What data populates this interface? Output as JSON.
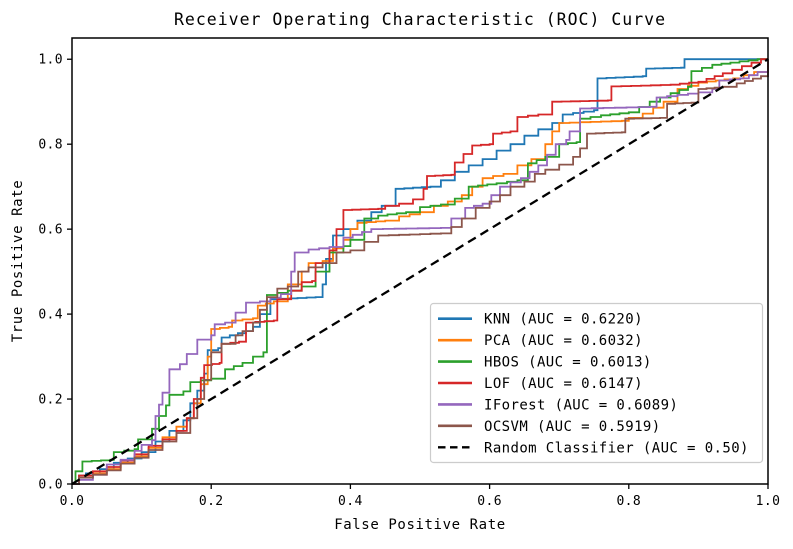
{
  "chart_data": {
    "type": "line",
    "subtype": "roc-step-curves",
    "title": "Receiver Operating Characteristic (ROC) Curve",
    "xlabel": "False Positive Rate",
    "ylabel": "True Positive Rate",
    "xlim": [
      0.0,
      1.0
    ],
    "ylim": [
      0.0,
      1.05
    ],
    "x_ticks": [
      "0.0",
      "0.2",
      "0.4",
      "0.6",
      "0.8",
      "1.0"
    ],
    "y_ticks": [
      "0.0",
      "0.2",
      "0.4",
      "0.6",
      "0.8",
      "1.0"
    ],
    "grid": false,
    "legend_position": "lower right",
    "series": [
      {
        "name": "KNN",
        "auc": 0.622,
        "label": "KNN (AUC = 0.6220)",
        "color": "#1f77b4",
        "style": "solid",
        "points": [
          [
            0,
            0
          ],
          [
            0.01,
            0.02
          ],
          [
            0.02,
            0.025
          ],
          [
            0.04,
            0.035
          ],
          [
            0.06,
            0.05
          ],
          [
            0.08,
            0.06
          ],
          [
            0.1,
            0.075
          ],
          [
            0.12,
            0.1
          ],
          [
            0.14,
            0.125
          ],
          [
            0.16,
            0.15
          ],
          [
            0.17,
            0.19
          ],
          [
            0.18,
            0.22
          ],
          [
            0.19,
            0.26
          ],
          [
            0.195,
            0.315
          ],
          [
            0.21,
            0.32
          ],
          [
            0.215,
            0.345
          ],
          [
            0.25,
            0.36
          ],
          [
            0.26,
            0.37
          ],
          [
            0.27,
            0.4
          ],
          [
            0.285,
            0.435
          ],
          [
            0.35,
            0.44
          ],
          [
            0.36,
            0.47
          ],
          [
            0.365,
            0.53
          ],
          [
            0.375,
            0.585
          ],
          [
            0.39,
            0.6
          ],
          [
            0.41,
            0.62
          ],
          [
            0.43,
            0.64
          ],
          [
            0.445,
            0.655
          ],
          [
            0.465,
            0.695
          ],
          [
            0.515,
            0.7
          ],
          [
            0.53,
            0.715
          ],
          [
            0.55,
            0.735
          ],
          [
            0.57,
            0.75
          ],
          [
            0.59,
            0.765
          ],
          [
            0.61,
            0.785
          ],
          [
            0.63,
            0.8
          ],
          [
            0.65,
            0.82
          ],
          [
            0.67,
            0.835
          ],
          [
            0.69,
            0.85
          ],
          [
            0.705,
            0.87
          ],
          [
            0.75,
            0.88
          ],
          [
            0.755,
            0.955
          ],
          [
            0.82,
            0.96
          ],
          [
            0.825,
            0.978
          ],
          [
            0.875,
            0.98
          ],
          [
            0.88,
            1.0
          ],
          [
            1,
            1
          ]
        ]
      },
      {
        "name": "PCA",
        "auc": 0.6032,
        "label": "PCA (AUC = 0.6032)",
        "color": "#ff7f0e",
        "style": "solid",
        "points": [
          [
            0,
            0
          ],
          [
            0.01,
            0.015
          ],
          [
            0.03,
            0.025
          ],
          [
            0.05,
            0.035
          ],
          [
            0.07,
            0.05
          ],
          [
            0.09,
            0.065
          ],
          [
            0.11,
            0.085
          ],
          [
            0.13,
            0.11
          ],
          [
            0.15,
            0.135
          ],
          [
            0.165,
            0.155
          ],
          [
            0.175,
            0.19
          ],
          [
            0.185,
            0.235
          ],
          [
            0.195,
            0.3
          ],
          [
            0.2,
            0.365
          ],
          [
            0.225,
            0.37
          ],
          [
            0.23,
            0.385
          ],
          [
            0.26,
            0.39
          ],
          [
            0.267,
            0.42
          ],
          [
            0.29,
            0.43
          ],
          [
            0.31,
            0.47
          ],
          [
            0.33,
            0.5
          ],
          [
            0.34,
            0.52
          ],
          [
            0.36,
            0.525
          ],
          [
            0.375,
            0.555
          ],
          [
            0.39,
            0.575
          ],
          [
            0.4,
            0.6
          ],
          [
            0.41,
            0.615
          ],
          [
            0.45,
            0.62
          ],
          [
            0.47,
            0.63
          ],
          [
            0.5,
            0.64
          ],
          [
            0.52,
            0.655
          ],
          [
            0.54,
            0.665
          ],
          [
            0.56,
            0.68
          ],
          [
            0.575,
            0.7
          ],
          [
            0.59,
            0.72
          ],
          [
            0.62,
            0.73
          ],
          [
            0.64,
            0.75
          ],
          [
            0.66,
            0.765
          ],
          [
            0.68,
            0.8
          ],
          [
            0.69,
            0.83
          ],
          [
            0.7,
            0.85
          ],
          [
            0.79,
            0.855
          ],
          [
            0.8,
            0.862
          ],
          [
            0.82,
            0.872
          ],
          [
            0.85,
            0.9
          ],
          [
            0.87,
            0.93
          ],
          [
            0.9,
            0.945
          ],
          [
            0.95,
            0.955
          ],
          [
            0.98,
            0.97
          ],
          [
            1,
            1
          ]
        ]
      },
      {
        "name": "HBOS",
        "auc": 0.6013,
        "label": "HBOS (AUC = 0.6013)",
        "color": "#2ca02c",
        "style": "solid",
        "points": [
          [
            0,
            0
          ],
          [
            0.005,
            0.03
          ],
          [
            0.015,
            0.053
          ],
          [
            0.055,
            0.057
          ],
          [
            0.06,
            0.075
          ],
          [
            0.09,
            0.082
          ],
          [
            0.095,
            0.105
          ],
          [
            0.115,
            0.13
          ],
          [
            0.125,
            0.16
          ],
          [
            0.135,
            0.185
          ],
          [
            0.14,
            0.21
          ],
          [
            0.16,
            0.218
          ],
          [
            0.17,
            0.24
          ],
          [
            0.2,
            0.248
          ],
          [
            0.22,
            0.27
          ],
          [
            0.245,
            0.285
          ],
          [
            0.26,
            0.3
          ],
          [
            0.275,
            0.31
          ],
          [
            0.28,
            0.445
          ],
          [
            0.31,
            0.455
          ],
          [
            0.33,
            0.465
          ],
          [
            0.35,
            0.5
          ],
          [
            0.37,
            0.545
          ],
          [
            0.39,
            0.56
          ],
          [
            0.4,
            0.575
          ],
          [
            0.42,
            0.625
          ],
          [
            0.44,
            0.632
          ],
          [
            0.48,
            0.64
          ],
          [
            0.5,
            0.652
          ],
          [
            0.53,
            0.658
          ],
          [
            0.55,
            0.672
          ],
          [
            0.57,
            0.7
          ],
          [
            0.61,
            0.708
          ],
          [
            0.64,
            0.715
          ],
          [
            0.655,
            0.755
          ],
          [
            0.68,
            0.77
          ],
          [
            0.7,
            0.8
          ],
          [
            0.725,
            0.805
          ],
          [
            0.73,
            0.86
          ],
          [
            0.76,
            0.868
          ],
          [
            0.8,
            0.875
          ],
          [
            0.83,
            0.9
          ],
          [
            0.86,
            0.92
          ],
          [
            0.885,
            0.935
          ],
          [
            0.89,
            0.972
          ],
          [
            0.92,
            0.987
          ],
          [
            0.985,
            1.0
          ],
          [
            1,
            1
          ]
        ]
      },
      {
        "name": "LOF",
        "auc": 0.6147,
        "label": "LOF (AUC = 0.6147)",
        "color": "#d62728",
        "style": "solid",
        "points": [
          [
            0,
            0
          ],
          [
            0.01,
            0.02
          ],
          [
            0.03,
            0.03
          ],
          [
            0.05,
            0.04
          ],
          [
            0.07,
            0.055
          ],
          [
            0.09,
            0.07
          ],
          [
            0.11,
            0.09
          ],
          [
            0.13,
            0.105
          ],
          [
            0.15,
            0.125
          ],
          [
            0.165,
            0.155
          ],
          [
            0.175,
            0.2
          ],
          [
            0.185,
            0.25
          ],
          [
            0.19,
            0.28
          ],
          [
            0.212,
            0.285
          ],
          [
            0.215,
            0.33
          ],
          [
            0.24,
            0.335
          ],
          [
            0.25,
            0.38
          ],
          [
            0.29,
            0.385
          ],
          [
            0.295,
            0.435
          ],
          [
            0.315,
            0.455
          ],
          [
            0.33,
            0.475
          ],
          [
            0.345,
            0.478
          ],
          [
            0.35,
            0.52
          ],
          [
            0.37,
            0.55
          ],
          [
            0.38,
            0.6
          ],
          [
            0.39,
            0.645
          ],
          [
            0.44,
            0.648
          ],
          [
            0.45,
            0.655
          ],
          [
            0.47,
            0.66
          ],
          [
            0.49,
            0.67
          ],
          [
            0.505,
            0.695
          ],
          [
            0.51,
            0.725
          ],
          [
            0.545,
            0.728
          ],
          [
            0.55,
            0.757
          ],
          [
            0.575,
            0.797
          ],
          [
            0.6,
            0.8
          ],
          [
            0.605,
            0.825
          ],
          [
            0.63,
            0.83
          ],
          [
            0.64,
            0.864
          ],
          [
            0.67,
            0.87
          ],
          [
            0.69,
            0.9
          ],
          [
            0.77,
            0.903
          ],
          [
            0.775,
            0.936
          ],
          [
            0.86,
            0.94
          ],
          [
            0.9,
            0.947
          ],
          [
            0.935,
            0.967
          ],
          [
            0.99,
            1.0
          ],
          [
            1,
            1
          ]
        ]
      },
      {
        "name": "IForest",
        "auc": 0.6089,
        "label": "IForest (AUC = 0.6089)",
        "color": "#9467bd",
        "style": "solid",
        "points": [
          [
            0,
            0
          ],
          [
            0.01,
            0.01
          ],
          [
            0.03,
            0.022
          ],
          [
            0.05,
            0.046
          ],
          [
            0.07,
            0.057
          ],
          [
            0.09,
            0.078
          ],
          [
            0.1,
            0.092
          ],
          [
            0.115,
            0.103
          ],
          [
            0.12,
            0.16
          ],
          [
            0.125,
            0.187
          ],
          [
            0.13,
            0.215
          ],
          [
            0.14,
            0.27
          ],
          [
            0.155,
            0.282
          ],
          [
            0.165,
            0.306
          ],
          [
            0.18,
            0.34
          ],
          [
            0.2,
            0.35
          ],
          [
            0.205,
            0.376
          ],
          [
            0.22,
            0.38
          ],
          [
            0.25,
            0.427
          ],
          [
            0.27,
            0.43
          ],
          [
            0.3,
            0.447
          ],
          [
            0.315,
            0.5
          ],
          [
            0.32,
            0.545
          ],
          [
            0.34,
            0.552
          ],
          [
            0.37,
            0.558
          ],
          [
            0.39,
            0.58
          ],
          [
            0.43,
            0.6
          ],
          [
            0.53,
            0.603
          ],
          [
            0.545,
            0.625
          ],
          [
            0.565,
            0.65
          ],
          [
            0.59,
            0.66
          ],
          [
            0.615,
            0.7
          ],
          [
            0.645,
            0.72
          ],
          [
            0.67,
            0.75
          ],
          [
            0.695,
            0.8
          ],
          [
            0.71,
            0.81
          ],
          [
            0.715,
            0.83
          ],
          [
            0.73,
            0.884
          ],
          [
            0.83,
            0.888
          ],
          [
            0.84,
            0.91
          ],
          [
            0.87,
            0.916
          ],
          [
            0.9,
            0.922
          ],
          [
            0.92,
            0.93
          ],
          [
            0.93,
            0.95
          ],
          [
            0.96,
            0.955
          ],
          [
            0.985,
            0.97
          ],
          [
            1,
            1
          ]
        ]
      },
      {
        "name": "OCSVM",
        "auc": 0.5919,
        "label": "OCSVM (AUC = 0.5919)",
        "color": "#8c564b",
        "style": "solid",
        "points": [
          [
            0,
            0
          ],
          [
            0.01,
            0.015
          ],
          [
            0.03,
            0.022
          ],
          [
            0.05,
            0.032
          ],
          [
            0.07,
            0.048
          ],
          [
            0.09,
            0.062
          ],
          [
            0.11,
            0.08
          ],
          [
            0.13,
            0.1
          ],
          [
            0.15,
            0.12
          ],
          [
            0.17,
            0.155
          ],
          [
            0.18,
            0.2
          ],
          [
            0.19,
            0.245
          ],
          [
            0.2,
            0.31
          ],
          [
            0.215,
            0.33
          ],
          [
            0.235,
            0.35
          ],
          [
            0.245,
            0.36
          ],
          [
            0.26,
            0.38
          ],
          [
            0.27,
            0.41
          ],
          [
            0.28,
            0.44
          ],
          [
            0.295,
            0.46
          ],
          [
            0.31,
            0.465
          ],
          [
            0.325,
            0.5
          ],
          [
            0.34,
            0.51
          ],
          [
            0.36,
            0.52
          ],
          [
            0.38,
            0.545
          ],
          [
            0.4,
            0.55
          ],
          [
            0.42,
            0.57
          ],
          [
            0.44,
            0.585
          ],
          [
            0.53,
            0.59
          ],
          [
            0.545,
            0.605
          ],
          [
            0.56,
            0.625
          ],
          [
            0.58,
            0.65
          ],
          [
            0.6,
            0.665
          ],
          [
            0.615,
            0.68
          ],
          [
            0.63,
            0.7
          ],
          [
            0.65,
            0.712
          ],
          [
            0.665,
            0.73
          ],
          [
            0.68,
            0.74
          ],
          [
            0.7,
            0.752
          ],
          [
            0.72,
            0.77
          ],
          [
            0.73,
            0.79
          ],
          [
            0.74,
            0.825
          ],
          [
            0.79,
            0.828
          ],
          [
            0.795,
            0.86
          ],
          [
            0.845,
            0.862
          ],
          [
            0.855,
            0.895
          ],
          [
            0.89,
            0.898
          ],
          [
            0.9,
            0.93
          ],
          [
            0.935,
            0.935
          ],
          [
            0.955,
            0.943
          ],
          [
            0.99,
            0.96
          ],
          [
            1,
            1
          ]
        ]
      },
      {
        "name": "Random Classifier",
        "auc": 0.5,
        "label": "Random Classifier (AUC = 0.50)",
        "color": "#000000",
        "style": "dashed",
        "points": [
          [
            0,
            0
          ],
          [
            1,
            1
          ]
        ]
      }
    ]
  }
}
